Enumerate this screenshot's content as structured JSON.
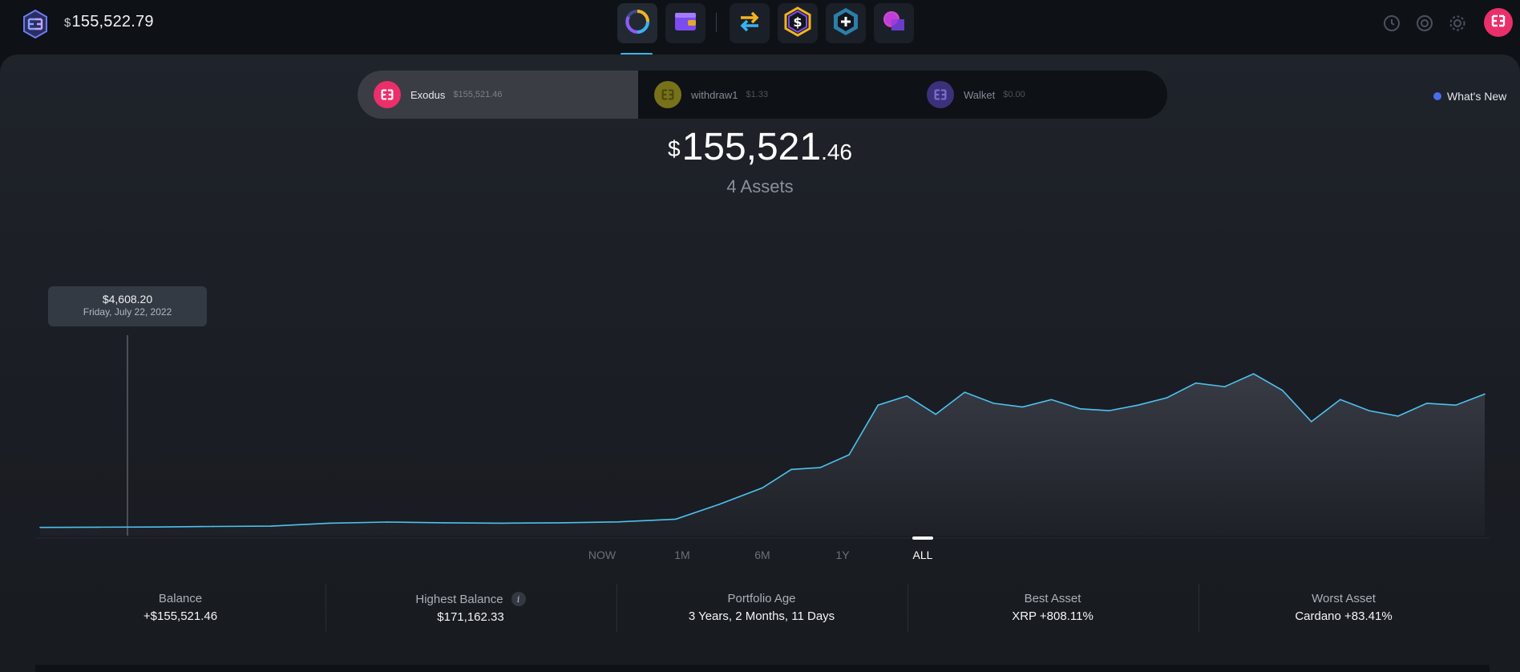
{
  "header": {
    "currency_symbol": "$",
    "balance": "155,522.79",
    "nav": [
      {
        "name": "portfolio",
        "icon": "portfolio-ring-icon",
        "active": true
      },
      {
        "name": "wallet",
        "icon": "wallet-icon"
      },
      {
        "name": "exchange",
        "icon": "exchange-arrows-icon"
      },
      {
        "name": "earn",
        "icon": "dollar-hex-icon"
      },
      {
        "name": "add-apps",
        "icon": "plus-hex-icon"
      },
      {
        "name": "messaging",
        "icon": "chat-bubble-icon"
      }
    ],
    "right_icons": [
      "history-icon",
      "support-icon",
      "settings-icon"
    ],
    "avatar_icon": "exodus-logo-icon"
  },
  "wallets": [
    {
      "name": "Exodus",
      "balance": "$155,521.46",
      "color": "#ea2f6a",
      "active": true
    },
    {
      "name": "withdraw1",
      "balance": "$1.33",
      "color": "#9a9418",
      "active": false
    },
    {
      "name": "Walket",
      "balance": "$0.00",
      "color": "#5a4ab8",
      "active": false
    }
  ],
  "whats_new": "What's New",
  "portfolio": {
    "currency_symbol": "$",
    "total_whole": "155,521",
    "total_decimal": ".46",
    "assets_label": "4 Assets"
  },
  "tooltip": {
    "value": "$4,608.20",
    "date": "Friday, July 22, 2022"
  },
  "ranges": [
    {
      "label": "NOW",
      "active": false
    },
    {
      "label": "1M",
      "active": false
    },
    {
      "label": "6M",
      "active": false
    },
    {
      "label": "1Y",
      "active": false
    },
    {
      "label": "ALL",
      "active": true
    }
  ],
  "stats": [
    {
      "label": "Balance",
      "value": "+$155,521.46",
      "info": false
    },
    {
      "label": "Highest Balance",
      "value": "$171,162.33",
      "info": true
    },
    {
      "label": "Portfolio Age",
      "value": "3 Years, 2 Months, 11 Days",
      "info": false
    },
    {
      "label": "Best Asset",
      "value": "XRP +808.11%",
      "info": false
    },
    {
      "label": "Worst Asset",
      "value": "Cardano +83.41%",
      "info": false
    }
  ],
  "colors": {
    "line": "#4cc2f0",
    "accent": "#37b5e6",
    "brand": "#ea2f6a"
  },
  "chart_data": {
    "type": "area",
    "title": "",
    "xlabel": "",
    "ylabel": "",
    "ylim": [
      0,
      180000
    ],
    "x": [
      0,
      4,
      8,
      12,
      16,
      20,
      24,
      28,
      32,
      36,
      40,
      44,
      47,
      50,
      52,
      54,
      56,
      58,
      60,
      62,
      64,
      66,
      68,
      70,
      72,
      74,
      76,
      78,
      80,
      82,
      84,
      86,
      88,
      90,
      92,
      94,
      96,
      98,
      100
    ],
    "values": [
      4500,
      4608,
      4700,
      5000,
      5200,
      6800,
      7400,
      7000,
      6800,
      7000,
      7500,
      9000,
      17000,
      26000,
      36000,
      37000,
      44000,
      71000,
      76000,
      66000,
      78000,
      72000,
      70000,
      74000,
      69000,
      68000,
      71000,
      75000,
      83000,
      81000,
      88000,
      79000,
      62000,
      74000,
      68000,
      65000,
      72000,
      71000,
      77000
    ],
    "grid": false,
    "legend": "none"
  }
}
